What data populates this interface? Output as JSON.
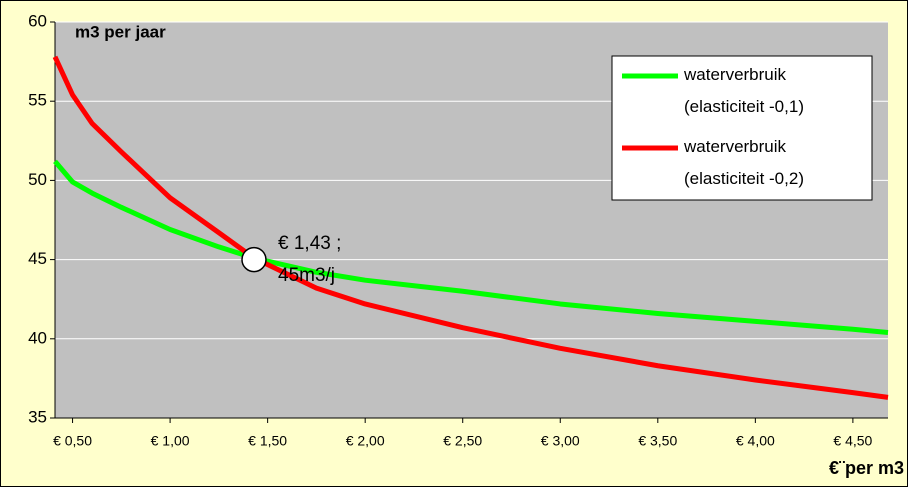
{
  "chart_data": {
    "type": "line",
    "title": "m3 per jaar",
    "xlabel": "€¨per m3",
    "xlim": [
      0.41,
      4.68
    ],
    "xticks": [
      {
        "value": 0.5,
        "label": "€ 0,50"
      },
      {
        "value": 1.0,
        "label": "€ 1,00"
      },
      {
        "value": 1.5,
        "label": "€ 1,50"
      },
      {
        "value": 2.0,
        "label": "€ 2,00"
      },
      {
        "value": 2.5,
        "label": "€ 2,50"
      },
      {
        "value": 3.0,
        "label": "€ 3,00"
      },
      {
        "value": 3.5,
        "label": "€ 3,50"
      },
      {
        "value": 4.0,
        "label": "€ 4,00"
      },
      {
        "value": 4.5,
        "label": "€ 4,50"
      }
    ],
    "ylim": [
      35,
      60
    ],
    "yticks": [
      35,
      40,
      45,
      50,
      55,
      60
    ],
    "grid": true,
    "legend": "upper right",
    "x": [
      0.41,
      0.5,
      0.6,
      0.75,
      1.0,
      1.25,
      1.43,
      1.75,
      2.0,
      2.5,
      3.0,
      3.5,
      4.0,
      4.5,
      4.68
    ],
    "series": [
      {
        "name": "waterverbruik (elasticiteit -0,1)",
        "color": "#00ff00",
        "values": [
          51.2,
          49.9,
          49.2,
          48.3,
          46.9,
          45.8,
          45.1,
          44.2,
          43.7,
          43.0,
          42.2,
          41.6,
          41.1,
          40.6,
          40.4
        ]
      },
      {
        "name": "waterverbruik (elasticiteit -0,2)",
        "color": "#ff0000",
        "values": [
          57.8,
          55.4,
          53.6,
          51.8,
          48.9,
          46.7,
          45.1,
          43.2,
          42.2,
          40.7,
          39.4,
          38.3,
          37.4,
          36.6,
          36.3
        ]
      }
    ],
    "marker": {
      "x": 1.43,
      "y": 45
    },
    "annotation": [
      "€ 1,43 ;",
      "45m3/j"
    ]
  }
}
